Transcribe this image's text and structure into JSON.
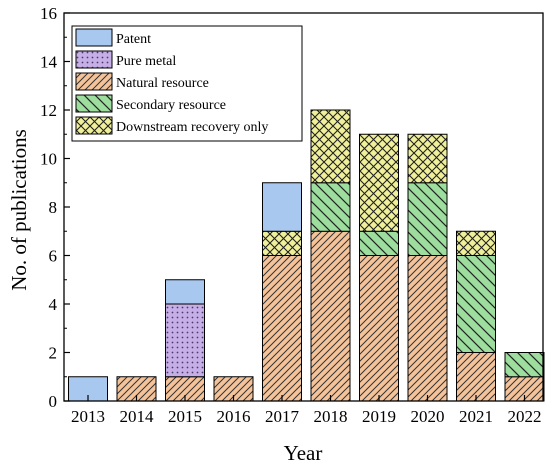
{
  "chart_data": {
    "type": "bar",
    "stacked": true,
    "xlabel": "Year",
    "ylabel": "No. of publications",
    "ylim": [
      0,
      16
    ],
    "yticks": [
      0,
      2,
      4,
      6,
      8,
      10,
      12,
      14,
      16
    ],
    "grid": false,
    "legend_position": "top-left",
    "categories": [
      "2013",
      "2014",
      "2015",
      "2016",
      "2017",
      "2018",
      "2019",
      "2020",
      "2021",
      "2022"
    ],
    "series": [
      {
        "name": "Natural resource",
        "key": "natural",
        "color": "#f5c39a",
        "pattern": "diag-right",
        "values": [
          0,
          1,
          1,
          1,
          6,
          7,
          6,
          6,
          2,
          1
        ]
      },
      {
        "name": "Pure metal",
        "key": "pure",
        "color": "#c6aee6",
        "pattern": "dots",
        "values": [
          0,
          0,
          3,
          0,
          0,
          0,
          0,
          0,
          0,
          0
        ]
      },
      {
        "name": "Secondary resource",
        "key": "secondary",
        "color": "#9ddd9d",
        "pattern": "diag-left",
        "values": [
          0,
          0,
          0,
          0,
          0,
          2,
          1,
          3,
          4,
          1
        ]
      },
      {
        "name": "Downstream recovery only",
        "key": "downstream",
        "color": "#f0f09a",
        "pattern": "crosshatch",
        "values": [
          0,
          0,
          0,
          0,
          1,
          3,
          4,
          2,
          1,
          0
        ]
      },
      {
        "name": "Patent",
        "key": "patent",
        "color": "#a9c8f0",
        "pattern": "none",
        "values": [
          1,
          0,
          1,
          0,
          2,
          0,
          0,
          0,
          0,
          0
        ]
      }
    ],
    "legend_order": [
      "patent",
      "pure",
      "natural",
      "secondary",
      "downstream"
    ]
  }
}
